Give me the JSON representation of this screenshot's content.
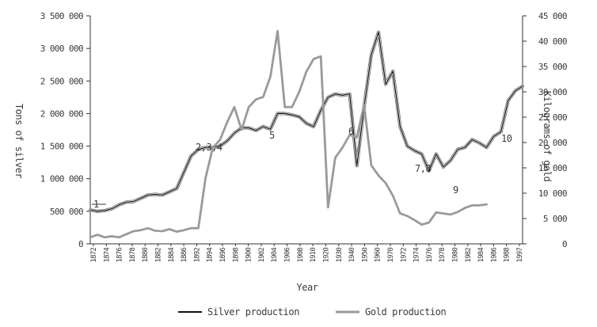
{
  "chart_data": {
    "type": "line",
    "xlabel": "Year",
    "ylabel_left": "Tons of silver",
    "ylabel_right": "Kilograms of gold",
    "x_tick_labels": [
      "1872",
      "1874",
      "1876",
      "1878",
      "1880",
      "1882",
      "1884",
      "1886",
      "1892",
      "1894",
      "1896",
      "1898",
      "1900",
      "1902",
      "1904",
      "1906",
      "1908",
      "1910",
      "1920",
      "1930",
      "1940",
      "1950",
      "1960",
      "1970",
      "1972",
      "1974",
      "1976",
      "1978",
      "1980",
      "1982",
      "1984",
      "1986",
      "1988",
      "1997"
    ],
    "y_left_ticks": [
      "0",
      "500 000",
      "1 000 000",
      "1 500 000",
      "2 000 000",
      "2 500 000",
      "3 000 000",
      "3 500 000"
    ],
    "y_right_ticks": [
      "0",
      "5 000",
      "10 000",
      "15 000",
      "20 000",
      "25 000",
      "30 000",
      "35 000",
      "40 000",
      "45 000"
    ],
    "ylim_left": [
      0,
      3500000
    ],
    "ylim_right": [
      0,
      45000
    ],
    "series": [
      {
        "name": "Silver production",
        "axis": "left",
        "color": "#111111",
        "points": [
          [
            0,
            520000
          ],
          [
            1,
            500000
          ],
          [
            2,
            510000
          ],
          [
            3,
            540000
          ],
          [
            4,
            600000
          ],
          [
            5,
            640000
          ],
          [
            6,
            650000
          ],
          [
            7,
            700000
          ],
          [
            8,
            750000
          ],
          [
            9,
            760000
          ],
          [
            10,
            750000
          ],
          [
            11,
            800000
          ],
          [
            12,
            850000
          ],
          [
            13,
            1100000
          ],
          [
            14,
            1350000
          ],
          [
            15,
            1450000
          ],
          [
            16,
            1480000
          ],
          [
            17,
            1480000
          ],
          [
            18,
            1500000
          ],
          [
            19,
            1580000
          ],
          [
            20,
            1700000
          ],
          [
            21,
            1780000
          ],
          [
            22,
            1780000
          ],
          [
            23,
            1740000
          ],
          [
            24,
            1800000
          ],
          [
            25,
            1760000
          ],
          [
            26,
            2000000
          ],
          [
            27,
            2000000
          ],
          [
            28,
            1980000
          ],
          [
            29,
            1950000
          ],
          [
            30,
            1850000
          ],
          [
            31,
            1800000
          ],
          [
            32,
            2050000
          ],
          [
            33,
            2250000
          ],
          [
            34,
            2300000
          ],
          [
            35,
            2280000
          ],
          [
            36,
            2300000
          ],
          [
            37,
            1200000
          ],
          [
            38,
            2100000
          ],
          [
            39,
            2900000
          ],
          [
            40,
            3250000
          ],
          [
            41,
            2450000
          ],
          [
            42,
            2650000
          ],
          [
            43,
            1800000
          ],
          [
            44,
            1500000
          ],
          [
            45,
            1430000
          ],
          [
            46,
            1380000
          ],
          [
            47,
            1120000
          ],
          [
            48,
            1380000
          ],
          [
            49,
            1180000
          ],
          [
            50,
            1280000
          ],
          [
            51,
            1450000
          ],
          [
            52,
            1480000
          ],
          [
            53,
            1600000
          ],
          [
            54,
            1550000
          ],
          [
            55,
            1480000
          ],
          [
            56,
            1650000
          ],
          [
            57,
            1720000
          ],
          [
            58,
            2200000
          ],
          [
            59,
            2350000
          ],
          [
            60,
            2420000
          ]
        ]
      },
      {
        "name": "Gold production",
        "axis": "right",
        "color": "#9a9a9a",
        "points": [
          [
            0,
            1300
          ],
          [
            1,
            1800
          ],
          [
            2,
            1300
          ],
          [
            3,
            1500
          ],
          [
            4,
            1300
          ],
          [
            5,
            1900
          ],
          [
            6,
            2500
          ],
          [
            7,
            2700
          ],
          [
            8,
            3100
          ],
          [
            9,
            2600
          ],
          [
            10,
            2500
          ],
          [
            11,
            2900
          ],
          [
            12,
            2400
          ],
          [
            13,
            2700
          ],
          [
            14,
            3100
          ],
          [
            15,
            3100
          ],
          [
            16,
            13000
          ],
          [
            17,
            19000
          ],
          [
            18,
            20500
          ],
          [
            19,
            24000
          ],
          [
            20,
            27000
          ],
          [
            21,
            22500
          ],
          [
            22,
            27000
          ],
          [
            23,
            28500
          ],
          [
            24,
            29000
          ],
          [
            25,
            33000
          ],
          [
            26,
            42000
          ],
          [
            27,
            27000
          ],
          [
            28,
            27000
          ],
          [
            29,
            30000
          ],
          [
            30,
            34000
          ],
          [
            31,
            36500
          ],
          [
            32,
            37000
          ],
          [
            33,
            7200
          ],
          [
            34,
            17000
          ],
          [
            35,
            19000
          ],
          [
            36,
            21500
          ],
          [
            37,
            21000
          ],
          [
            38,
            27500
          ],
          [
            39,
            15500
          ],
          [
            40,
            13500
          ],
          [
            41,
            12000
          ],
          [
            42,
            9500
          ],
          [
            43,
            6000
          ],
          [
            44,
            5500
          ],
          [
            45,
            4700
          ],
          [
            46,
            3800
          ],
          [
            47,
            4200
          ],
          [
            48,
            6200
          ],
          [
            49,
            6000
          ],
          [
            50,
            5800
          ],
          [
            51,
            6300
          ],
          [
            52,
            7100
          ],
          [
            53,
            7600
          ],
          [
            54,
            7600
          ],
          [
            55,
            7800
          ]
        ]
      }
    ],
    "annotations": [
      "1",
      "2,3,4",
      "5",
      "6",
      "7,8",
      "9",
      "10"
    ],
    "legend_position": "bottom",
    "grid": false
  }
}
